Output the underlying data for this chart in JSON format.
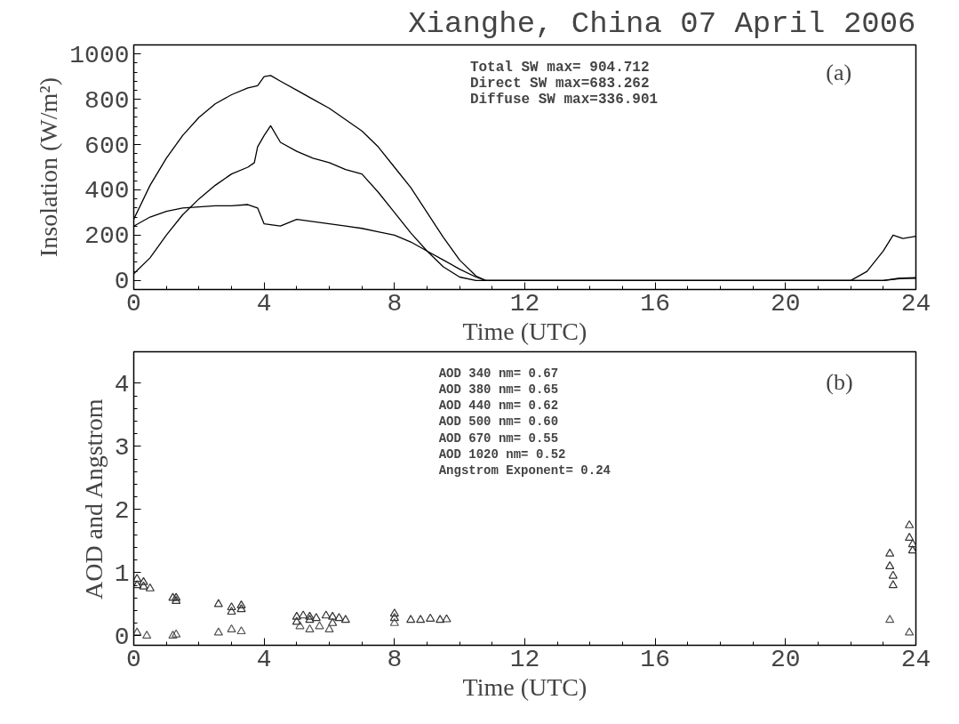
{
  "chart_data": [
    {
      "type": "line",
      "title": "Xianghe, China 07 April 2006",
      "xlabel": "Time (UTC)",
      "ylabel": "Insolation (W/m²)",
      "xlim": [
        0,
        24
      ],
      "xticks": [
        0,
        4,
        8,
        12,
        16,
        20,
        24
      ],
      "ylim": [
        -40,
        1040
      ],
      "yticks": [
        0,
        200,
        400,
        600,
        800,
        1000
      ],
      "grid": false,
      "line_style": "solid",
      "annotations": [
        "Total SW max= 904.712",
        "Direct SW max=683.262",
        "Diffuse SW max=336.901",
        "(a)"
      ],
      "series": [
        {
          "color": "#000000",
          "x": [
            0,
            0.5,
            1,
            1.5,
            2,
            2.5,
            3,
            3.5,
            3.8,
            4.0,
            4.2,
            4.5,
            5,
            5.5,
            6,
            6.5,
            7,
            7.5,
            8,
            8.5,
            9,
            9.5,
            10,
            10.5,
            10.8,
            12,
            16,
            20,
            22,
            22.5,
            23,
            23.3,
            23.6,
            24
          ],
          "values": [
            270,
            420,
            540,
            640,
            720,
            780,
            820,
            850,
            860,
            900,
            905,
            880,
            840,
            800,
            760,
            710,
            660,
            590,
            500,
            410,
            300,
            190,
            90,
            20,
            0,
            0,
            0,
            0,
            0,
            40,
            130,
            200,
            185,
            195
          ]
        },
        {
          "color": "#000000",
          "x": [
            0,
            0.5,
            1,
            1.5,
            2,
            2.5,
            3,
            3.5,
            3.7,
            3.8,
            4.0,
            4.2,
            4.5,
            5,
            5.5,
            6,
            6.5,
            7,
            7.5,
            8,
            8.5,
            9,
            9.5,
            10,
            10.5,
            12,
            16,
            20,
            22,
            23,
            23.5,
            24
          ],
          "values": [
            30,
            100,
            200,
            290,
            360,
            420,
            470,
            500,
            520,
            590,
            640,
            683,
            610,
            570,
            540,
            520,
            490,
            470,
            390,
            300,
            210,
            130,
            60,
            15,
            0,
            0,
            0,
            0,
            0,
            0,
            8,
            10
          ]
        },
        {
          "color": "#000000",
          "x": [
            0,
            0.5,
            1,
            1.5,
            2,
            2.5,
            3,
            3.5,
            3.8,
            4.0,
            4.5,
            5,
            5.5,
            6,
            6.5,
            7,
            7.5,
            8,
            8.5,
            9,
            9.5,
            10,
            10.5,
            10.8,
            12,
            16,
            20,
            22,
            23,
            23.5,
            24
          ],
          "values": [
            240,
            280,
            305,
            320,
            325,
            330,
            330,
            335,
            320,
            250,
            240,
            270,
            260,
            250,
            240,
            230,
            215,
            200,
            170,
            130,
            90,
            50,
            15,
            0,
            0,
            0,
            0,
            0,
            0,
            10,
            12
          ]
        }
      ]
    },
    {
      "type": "scatter",
      "xlabel": "Time (UTC)",
      "ylabel": "AOD and Angstrom",
      "xlim": [
        0,
        24
      ],
      "xticks": [
        0,
        4,
        8,
        12,
        16,
        20,
        24
      ],
      "ylim": [
        -0.15,
        4.5
      ],
      "yticks": [
        0,
        1,
        2,
        3,
        4
      ],
      "grid": false,
      "marker": "triangle",
      "annotations": [
        "AOD 340 nm= 0.67",
        "AOD 380 nm= 0.65",
        "AOD 440 nm= 0.62",
        "AOD 500 nm= 0.60",
        "AOD 670 nm= 0.55",
        "AOD 1020 nm= 0.52",
        "Angstrom Exponent= 0.24",
        "(b)"
      ],
      "series": [
        {
          "color": "#333333",
          "x": [
            0.1,
            0.1,
            0.3,
            0.3,
            0.5,
            1.2,
            1.3,
            1.3,
            2.6,
            3.0,
            3.0,
            3.3,
            3.3,
            5.0,
            5.2,
            5.4,
            5.6,
            5.0,
            5.4,
            5.9,
            6.1,
            6.3,
            6.5,
            6.1,
            8.0,
            8.0,
            8.5,
            8.8,
            9.1,
            9.4,
            9.6,
            23.2,
            23.2,
            23.3,
            23.3,
            23.8,
            23.8,
            23.9,
            23.9
          ],
          "values": [
            0.9,
            0.8,
            0.85,
            0.78,
            0.75,
            0.6,
            0.6,
            0.55,
            0.5,
            0.45,
            0.38,
            0.48,
            0.42,
            0.3,
            0.32,
            0.3,
            0.28,
            0.22,
            0.25,
            0.32,
            0.3,
            0.28,
            0.25,
            0.2,
            0.35,
            0.28,
            0.25,
            0.25,
            0.27,
            0.25,
            0.26,
            1.3,
            1.1,
            0.95,
            0.8,
            1.75,
            1.55,
            1.45,
            1.35
          ]
        },
        {
          "color": "#555555",
          "x": [
            0.1,
            0.4,
            1.2,
            1.3,
            2.6,
            3.0,
            3.3,
            5.1,
            5.4,
            5.7,
            6.0,
            8.0,
            23.2,
            23.8
          ],
          "values": [
            0.05,
            0.0,
            0.0,
            0.02,
            0.05,
            0.1,
            0.07,
            0.15,
            0.1,
            0.15,
            0.1,
            0.2,
            0.25,
            0.05
          ]
        }
      ]
    }
  ]
}
